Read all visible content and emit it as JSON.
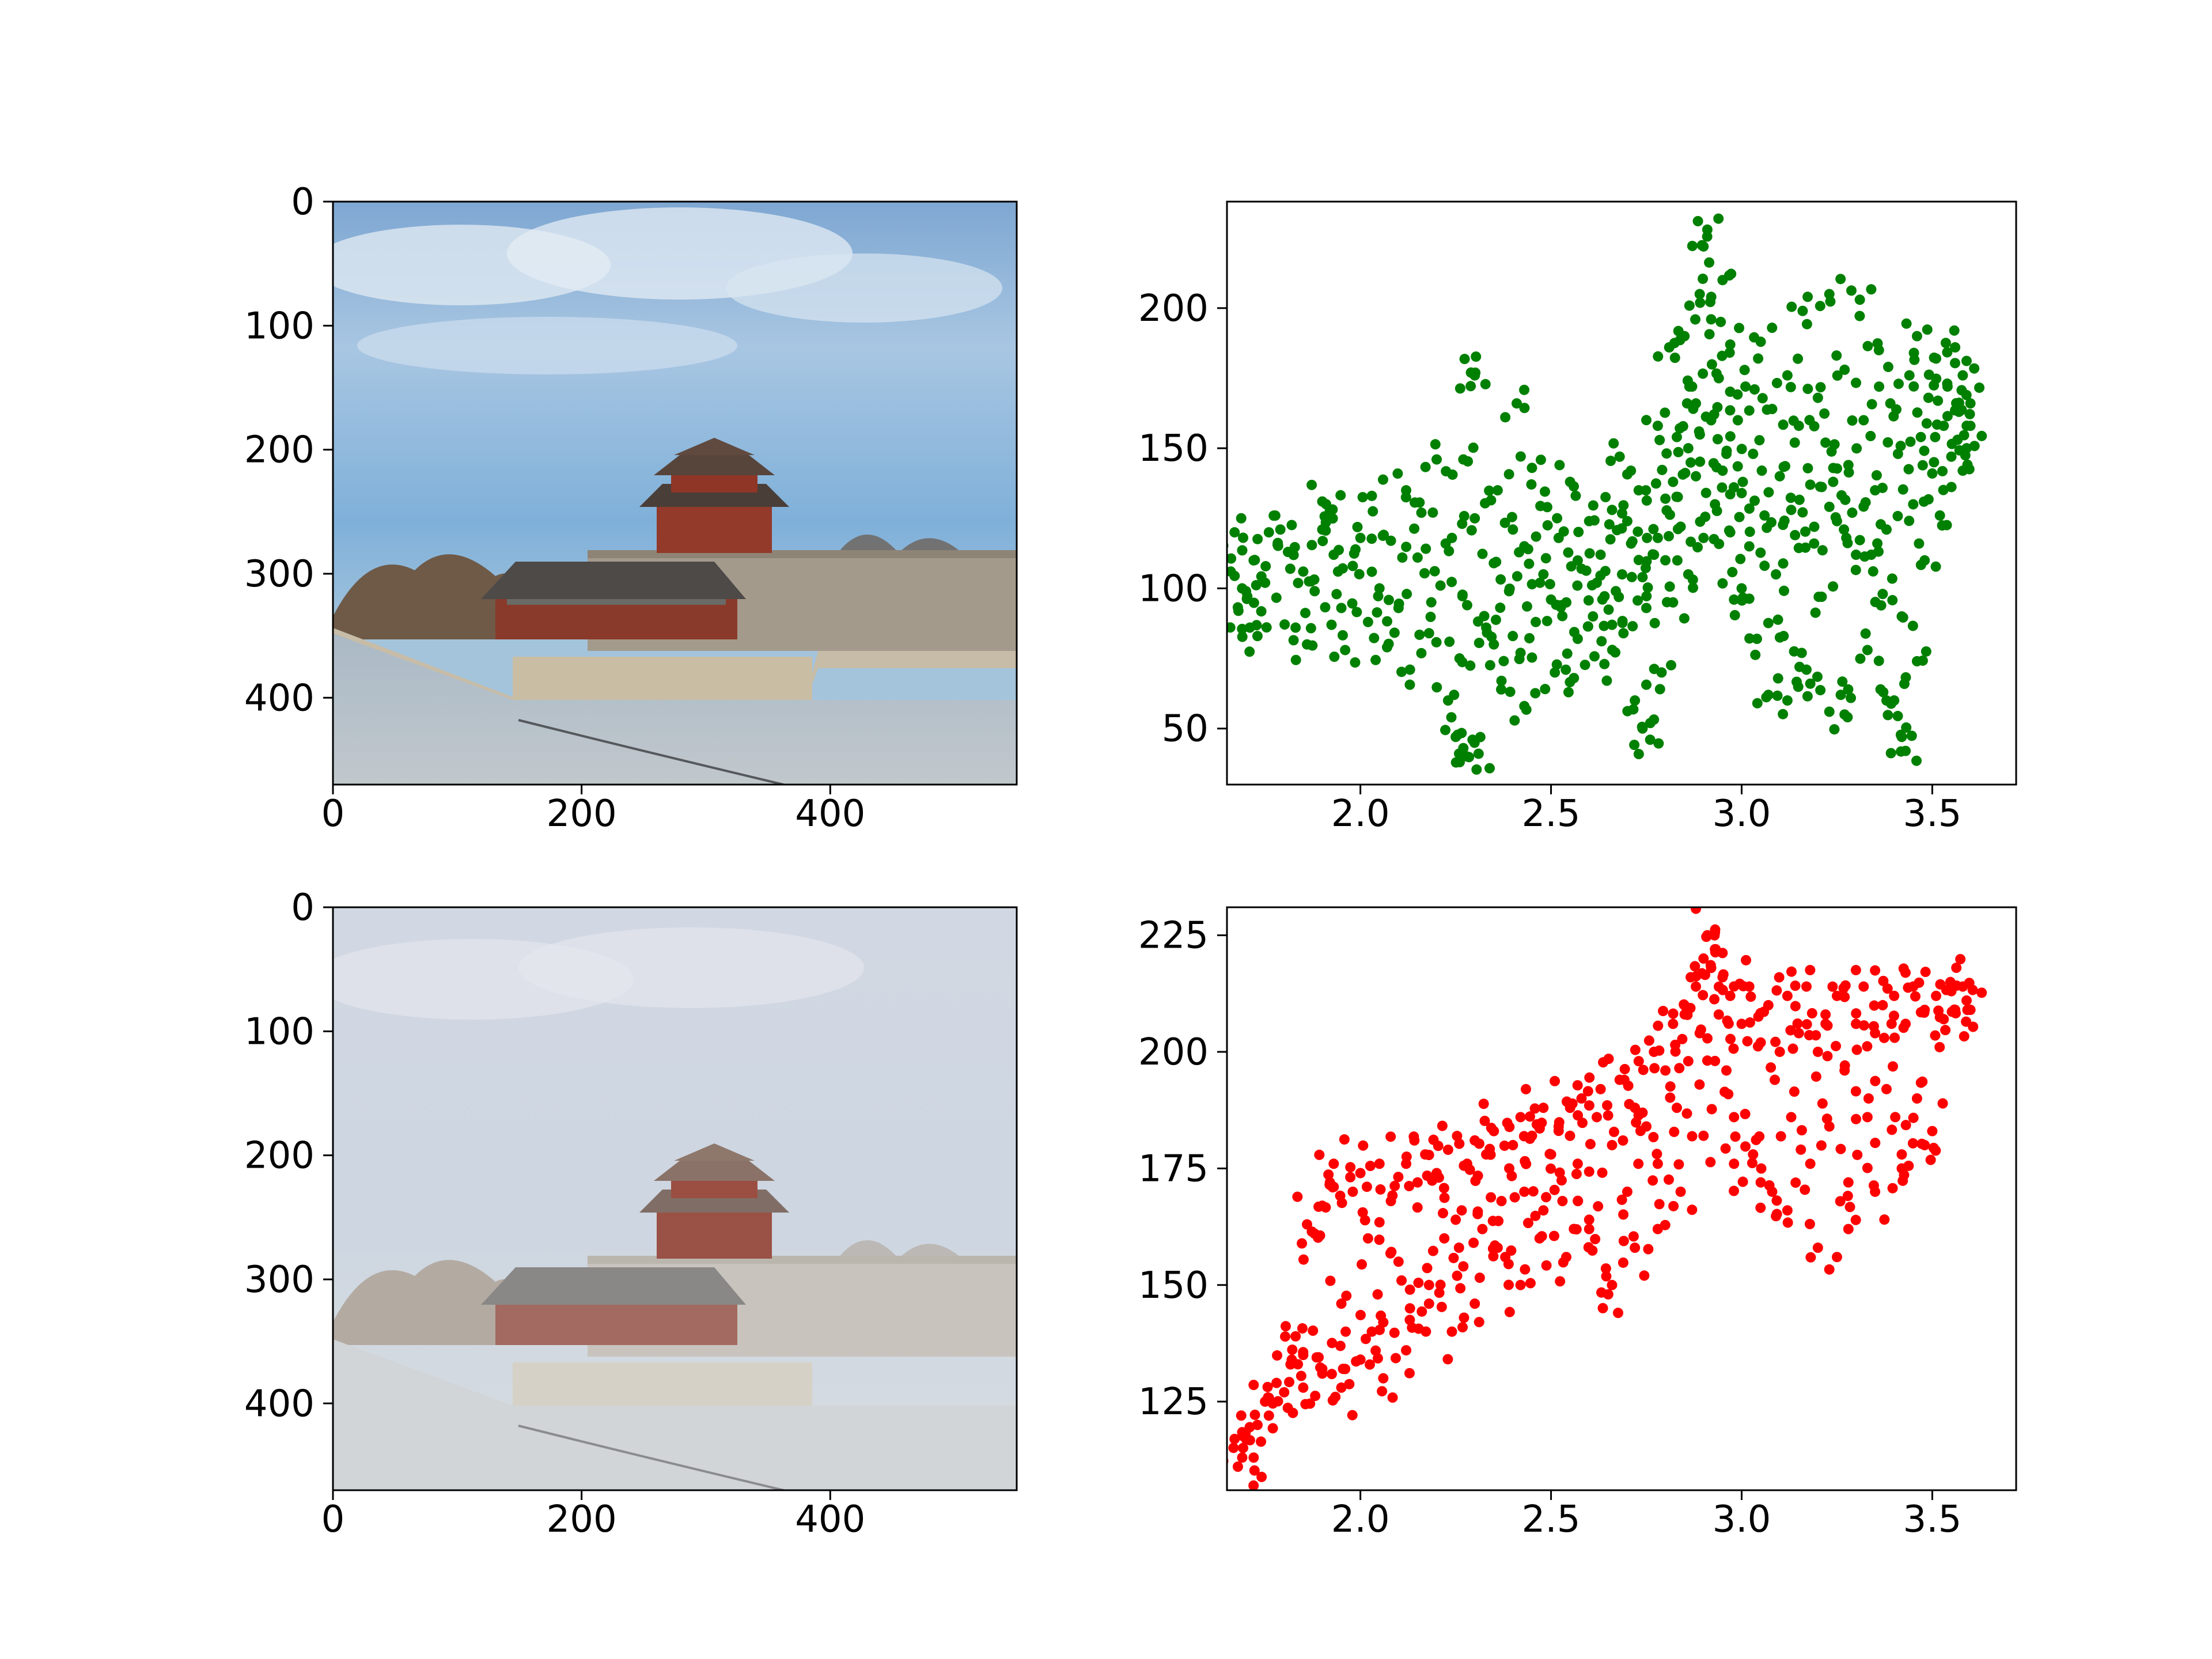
{
  "figure": {
    "background": "#ffffff"
  },
  "chart_data": [
    {
      "id": "photo-clear",
      "type": "image",
      "image_kind": "clear-photo",
      "description_free": true,
      "xlim": [
        0,
        550
      ],
      "ylim": [
        470,
        0
      ],
      "x_ticks": [
        0,
        200,
        400
      ],
      "y_ticks": [
        0,
        100,
        200,
        300,
        400
      ],
      "x_tick_labels": [
        "0",
        "200",
        "400"
      ],
      "y_tick_labels": [
        "0",
        "100",
        "200",
        "300",
        "400"
      ]
    },
    {
      "id": "scatter-green",
      "type": "scatter",
      "color": "#008000",
      "xlim": [
        1.65,
        3.72
      ],
      "ylim": [
        30,
        238
      ],
      "x_ticks": [
        2.0,
        2.5,
        3.0,
        3.5
      ],
      "y_ticks": [
        50,
        100,
        150,
        200
      ],
      "x_tick_labels": [
        "2.0",
        "2.5",
        "3.0",
        "3.5"
      ],
      "y_tick_labels": [
        "50",
        "100",
        "150",
        "200"
      ],
      "points": [
        [
          1.67,
          120
        ],
        [
          1.66,
          106
        ],
        [
          1.68,
          92
        ],
        [
          1.7,
          99
        ],
        [
          1.71,
          86
        ],
        [
          1.72,
          110
        ],
        [
          1.73,
          83
        ],
        [
          1.75,
          102
        ],
        [
          1.76,
          120
        ],
        [
          1.79,
          121
        ],
        [
          1.81,
          113
        ],
        [
          1.83,
          86
        ],
        [
          1.85,
          106
        ],
        [
          1.86,
          80
        ],
        [
          1.88,
          99
        ],
        [
          1.9,
          121
        ],
        [
          1.9,
          131
        ],
        [
          1.92,
          128
        ],
        [
          1.93,
          112
        ],
        [
          1.95,
          93
        ],
        [
          1.96,
          78
        ],
        [
          1.98,
          108
        ],
        [
          2.0,
          118
        ],
        [
          2.02,
          88
        ],
        [
          2.03,
          133
        ],
        [
          2.05,
          100
        ],
        [
          2.07,
          79
        ],
        [
          2.08,
          117
        ],
        [
          2.1,
          93
        ],
        [
          2.12,
          135
        ],
        [
          2.13,
          71
        ],
        [
          2.15,
          111
        ],
        [
          2.16,
          127
        ],
        [
          2.18,
          84
        ],
        [
          2.2,
          146
        ],
        [
          2.21,
          101
        ],
        [
          2.23,
          60
        ],
        [
          2.24,
          118
        ],
        [
          2.26,
          75
        ],
        [
          2.27,
          146
        ],
        [
          2.28,
          94
        ],
        [
          2.29,
          177
        ],
        [
          2.3,
          176
        ],
        [
          2.3,
          125
        ],
        [
          2.25,
          47
        ],
        [
          2.27,
          43
        ],
        [
          2.28,
          40
        ],
        [
          2.31,
          41
        ],
        [
          2.33,
          86
        ],
        [
          2.35,
          109
        ],
        [
          2.36,
          135
        ],
        [
          2.37,
          67
        ],
        [
          2.39,
          99
        ],
        [
          2.4,
          121
        ],
        [
          2.41,
          166
        ],
        [
          2.42,
          77
        ],
        [
          2.44,
          114
        ],
        [
          2.45,
          143
        ],
        [
          2.46,
          88
        ],
        [
          2.48,
          105
        ],
        [
          2.49,
          129
        ],
        [
          2.51,
          70
        ],
        [
          2.52,
          118
        ],
        [
          2.54,
          95
        ],
        [
          2.55,
          138
        ],
        [
          2.57,
          82
        ],
        [
          2.58,
          107
        ],
        [
          2.6,
          124
        ],
        [
          2.61,
          90
        ],
        [
          2.63,
          112
        ],
        [
          2.64,
          73
        ],
        [
          2.66,
          128
        ],
        [
          2.67,
          99
        ],
        [
          2.68,
          147
        ],
        [
          2.69,
          84
        ],
        [
          2.71,
          116
        ],
        [
          2.72,
          60
        ],
        [
          2.73,
          135
        ],
        [
          2.74,
          50
        ],
        [
          2.75,
          93
        ],
        [
          2.76,
          46
        ],
        [
          2.77,
          112
        ],
        [
          2.78,
          158
        ],
        [
          2.79,
          70
        ],
        [
          2.8,
          132
        ],
        [
          2.81,
          186
        ],
        [
          2.82,
          95
        ],
        [
          2.83,
          154
        ],
        [
          2.84,
          122
        ],
        [
          2.85,
          190
        ],
        [
          2.86,
          105
        ],
        [
          2.87,
          172
        ],
        [
          2.88,
          140
        ],
        [
          2.89,
          205
        ],
        [
          2.9,
          118
        ],
        [
          2.9,
          222
        ],
        [
          2.91,
          228
        ],
        [
          2.92,
          196
        ],
        [
          2.93,
          130
        ],
        [
          2.94,
          175
        ],
        [
          2.95,
          210
        ],
        [
          2.96,
          148
        ],
        [
          2.97,
          187
        ],
        [
          2.98,
          96
        ],
        [
          2.99,
          160
        ],
        [
          3.0,
          134
        ],
        [
          3.01,
          172
        ],
        [
          3.02,
          115
        ],
        [
          3.03,
          148
        ],
        [
          3.05,
          188
        ],
        [
          3.06,
          126
        ],
        [
          3.07,
          62
        ],
        [
          3.08,
          164
        ],
        [
          3.1,
          140
        ],
        [
          3.11,
          83
        ],
        [
          3.12,
          176
        ],
        [
          3.14,
          119
        ],
        [
          3.15,
          158
        ],
        [
          3.16,
          199
        ],
        [
          3.17,
          71
        ],
        [
          3.18,
          137
        ],
        [
          3.2,
          168
        ],
        [
          3.21,
          97
        ],
        [
          3.22,
          152
        ],
        [
          3.23,
          205
        ],
        [
          3.25,
          124
        ],
        [
          3.26,
          62
        ],
        [
          3.27,
          178
        ],
        [
          3.28,
          144
        ],
        [
          3.3,
          112
        ],
        [
          3.31,
          203
        ],
        [
          3.32,
          160
        ],
        [
          3.33,
          78
        ],
        [
          3.35,
          135
        ],
        [
          3.36,
          185
        ],
        [
          3.38,
          121
        ],
        [
          3.39,
          166
        ],
        [
          3.4,
          60
        ],
        [
          3.41,
          148
        ],
        [
          3.42,
          47
        ],
        [
          3.43,
          42
        ],
        [
          3.44,
          176
        ],
        [
          3.45,
          130
        ],
        [
          3.46,
          190
        ],
        [
          3.47,
          154
        ],
        [
          3.48,
          110
        ],
        [
          3.49,
          168
        ],
        [
          3.5,
          141
        ],
        [
          3.51,
          182
        ],
        [
          3.52,
          126
        ],
        [
          3.53,
          158
        ],
        [
          3.54,
          172
        ],
        [
          3.55,
          147
        ],
        [
          3.56,
          186
        ],
        [
          3.57,
          163
        ],
        [
          3.58,
          176
        ],
        [
          3.59,
          150
        ],
        [
          3.6,
          166
        ],
        [
          3.6,
          158
        ],
        [
          3.58,
          142
        ],
        [
          2.35,
          80
        ],
        [
          2.43,
          58
        ],
        [
          2.5,
          96
        ],
        [
          2.56,
          68
        ],
        [
          2.62,
          102
        ],
        [
          2.66,
          87
        ],
        [
          2.7,
          124
        ],
        [
          2.74,
          104
        ],
        [
          2.78,
          118
        ],
        [
          2.82,
          138
        ],
        [
          2.86,
          150
        ],
        [
          2.88,
          166
        ],
        [
          2.92,
          160
        ],
        [
          2.95,
          142
        ],
        [
          2.97,
          120
        ],
        [
          3.0,
          100
        ],
        [
          3.04,
          82
        ],
        [
          3.09,
          105
        ],
        [
          3.13,
          128
        ],
        [
          3.19,
          116
        ],
        [
          3.24,
          138
        ],
        [
          3.29,
          127
        ],
        [
          3.34,
          112
        ],
        [
          3.37,
          98
        ],
        [
          3.42,
          90
        ],
        [
          3.46,
          74
        ],
        [
          3.38,
          60
        ],
        [
          3.27,
          55
        ],
        [
          3.18,
          66
        ],
        [
          3.12,
          60
        ]
      ]
    },
    {
      "id": "photo-hazy",
      "type": "image",
      "image_kind": "hazy-photo",
      "xlim": [
        0,
        550
      ],
      "ylim": [
        470,
        0
      ],
      "x_ticks": [
        0,
        200,
        400
      ],
      "y_ticks": [
        0,
        100,
        200,
        300,
        400
      ],
      "x_tick_labels": [
        "0",
        "200",
        "400"
      ],
      "y_tick_labels": [
        "0",
        "100",
        "200",
        "300",
        "400"
      ]
    },
    {
      "id": "scatter-red",
      "type": "scatter",
      "color": "#ff0000",
      "xlim": [
        1.65,
        3.72
      ],
      "ylim": [
        106,
        231
      ],
      "x_ticks": [
        2.0,
        2.5,
        3.0,
        3.5
      ],
      "y_ticks": [
        125,
        150,
        175,
        200,
        225
      ],
      "x_tick_labels": [
        "2.0",
        "2.5",
        "3.0",
        "3.5"
      ],
      "y_tick_labels": [
        "125",
        "150",
        "175",
        "200",
        "225"
      ],
      "points": [
        [
          1.67,
          117
        ],
        [
          1.69,
          113
        ],
        [
          1.7,
          117
        ],
        [
          1.72,
          113
        ],
        [
          1.73,
          120
        ],
        [
          1.75,
          125
        ],
        [
          1.76,
          122
        ],
        [
          1.78,
          129
        ],
        [
          1.8,
          127
        ],
        [
          1.82,
          134
        ],
        [
          1.83,
          139
        ],
        [
          1.85,
          135
        ],
        [
          1.86,
          163
        ],
        [
          1.88,
          161
        ],
        [
          1.9,
          131
        ],
        [
          1.9,
          167
        ],
        [
          1.92,
          172
        ],
        [
          1.93,
          176
        ],
        [
          1.95,
          146
        ],
        [
          1.96,
          132
        ],
        [
          1.98,
          170
        ],
        [
          2.0,
          174
        ],
        [
          2.02,
          160
        ],
        [
          2.03,
          140
        ],
        [
          2.05,
          176
        ],
        [
          2.06,
          130
        ],
        [
          2.08,
          168
        ],
        [
          2.1,
          155
        ],
        [
          2.12,
          176
        ],
        [
          2.13,
          145
        ],
        [
          2.15,
          172
        ],
        [
          2.17,
          178
        ],
        [
          2.18,
          150
        ],
        [
          2.2,
          174
        ],
        [
          2.22,
          160
        ],
        [
          2.23,
          179
        ],
        [
          2.25,
          164
        ],
        [
          2.27,
          154
        ],
        [
          2.28,
          176
        ],
        [
          2.3,
          181
        ],
        [
          2.32,
          162
        ],
        [
          2.33,
          178
        ],
        [
          2.35,
          183
        ],
        [
          2.37,
          168
        ],
        [
          2.38,
          156
        ],
        [
          2.4,
          180
        ],
        [
          2.42,
          186
        ],
        [
          2.43,
          170
        ],
        [
          2.45,
          182
        ],
        [
          2.47,
          160
        ],
        [
          2.48,
          188
        ],
        [
          2.5,
          178
        ],
        [
          2.52,
          184
        ],
        [
          2.53,
          168
        ],
        [
          2.55,
          188
        ],
        [
          2.57,
          176
        ],
        [
          2.58,
          190
        ],
        [
          2.6,
          164
        ],
        [
          2.62,
          186
        ],
        [
          2.63,
          192
        ],
        [
          2.65,
          148
        ],
        [
          2.66,
          180
        ],
        [
          2.68,
          194
        ],
        [
          2.7,
          170
        ],
        [
          2.72,
          188
        ],
        [
          2.73,
          198
        ],
        [
          2.75,
          184
        ],
        [
          2.77,
          200
        ],
        [
          2.78,
          176
        ],
        [
          2.8,
          196
        ],
        [
          2.82,
          206
        ],
        [
          2.83,
          188
        ],
        [
          2.85,
          210
        ],
        [
          2.86,
          198
        ],
        [
          2.88,
          214
        ],
        [
          2.89,
          204
        ],
        [
          2.9,
          220
        ],
        [
          2.91,
          225
        ],
        [
          2.92,
          218
        ],
        [
          2.93,
          222
        ],
        [
          2.94,
          208
        ],
        [
          2.95,
          216
        ],
        [
          2.96,
          196
        ],
        [
          2.97,
          212
        ],
        [
          2.98,
          186
        ],
        [
          3.0,
          206
        ],
        [
          3.02,
          214
        ],
        [
          3.03,
          178
        ],
        [
          3.05,
          202
        ],
        [
          3.07,
          210
        ],
        [
          3.08,
          170
        ],
        [
          3.1,
          200
        ],
        [
          3.12,
          212
        ],
        [
          3.13,
          186
        ],
        [
          3.15,
          204
        ],
        [
          3.17,
          214
        ],
        [
          3.18,
          176
        ],
        [
          3.2,
          200
        ],
        [
          3.22,
          208
        ],
        [
          3.23,
          184
        ],
        [
          3.25,
          212
        ],
        [
          3.27,
          196
        ],
        [
          3.28,
          172
        ],
        [
          3.3,
          206
        ],
        [
          3.32,
          214
        ],
        [
          3.33,
          186
        ],
        [
          3.35,
          204
        ],
        [
          3.37,
          210
        ],
        [
          3.38,
          192
        ],
        [
          3.4,
          212
        ],
        [
          3.42,
          178
        ],
        [
          3.43,
          206
        ],
        [
          3.45,
          214
        ],
        [
          3.46,
          190
        ],
        [
          3.48,
          209
        ],
        [
          3.5,
          183
        ],
        [
          3.51,
          212
        ],
        [
          3.53,
          207
        ],
        [
          3.55,
          213
        ],
        [
          3.56,
          209
        ],
        [
          3.58,
          214
        ],
        [
          3.59,
          211
        ],
        [
          3.6,
          209
        ],
        [
          3.48,
          180
        ],
        [
          3.42,
          175
        ],
        [
          3.35,
          170
        ],
        [
          3.28,
          162
        ],
        [
          3.2,
          158
        ],
        [
          3.12,
          166
        ],
        [
          3.05,
          172
        ],
        [
          2.98,
          176
        ],
        [
          2.9,
          182
        ],
        [
          2.84,
          170
        ],
        [
          2.78,
          162
        ],
        [
          2.72,
          158
        ],
        [
          2.66,
          150
        ],
        [
          2.6,
          162
        ],
        [
          2.54,
          156
        ],
        [
          2.48,
          166
        ],
        [
          2.42,
          150
        ],
        [
          2.36,
          158
        ],
        [
          2.3,
          146
        ],
        [
          2.24,
          140
        ],
        [
          2.18,
          146
        ],
        [
          2.12,
          136
        ],
        [
          2.06,
          142
        ],
        [
          2.0,
          134
        ],
        [
          1.95,
          128
        ],
        [
          1.9,
          132
        ],
        [
          1.85,
          128
        ]
      ]
    }
  ]
}
